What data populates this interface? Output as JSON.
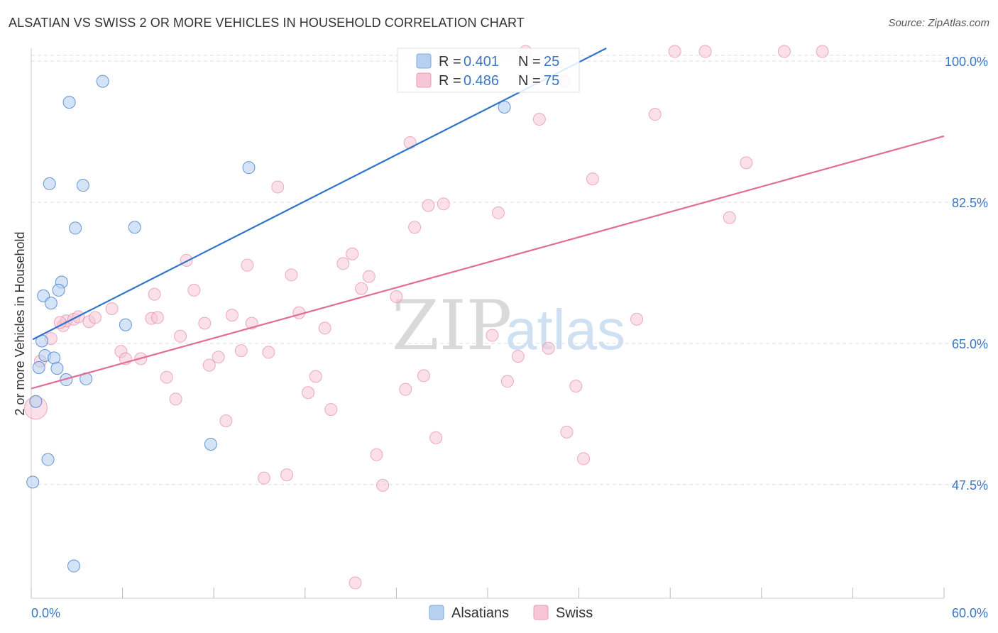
{
  "header": {
    "title": "ALSATIAN VS SWISS 2 OR MORE VEHICLES IN HOUSEHOLD CORRELATION CHART",
    "source": "Source: ZipAtlas.com"
  },
  "legend_top": {
    "rows": [
      {
        "r_label": "R = ",
        "r_value": "0.401",
        "n_label": "N = ",
        "n_value": "25"
      },
      {
        "r_label": "R = ",
        "r_value": "0.486",
        "n_label": "N = ",
        "n_value": "75"
      }
    ]
  },
  "legend_bottom": {
    "items": [
      {
        "label": "Alsatians"
      },
      {
        "label": "Swiss"
      }
    ]
  },
  "watermark": {
    "zip": "ZIP",
    "atlas": "atlas"
  },
  "colors": {
    "blue": "#3a75c4",
    "blue_fill": "#b8d0f0",
    "blue_line": "#2f74cc",
    "pink": "#e07aa0",
    "pink_fill": "#f7c6d6",
    "pink_line": "#e06e98",
    "grid": "#dddddd",
    "text_value": "#3a75c4"
  },
  "chart_data": {
    "type": "scatter",
    "title": "ALSATIAN VS SWISS 2 OR MORE VEHICLES IN HOUSEHOLD CORRELATION CHART",
    "xlabel": "",
    "ylabel": "2 or more Vehicles in Household",
    "xlim": [
      0,
      60
    ],
    "ylim": [
      33.4,
      101.6
    ],
    "x_tick_labels": [
      "0.0%",
      "60.0%"
    ],
    "y_ticks": [
      47.5,
      65.0,
      82.5,
      100.0
    ],
    "y_tick_labels": [
      "47.5%",
      "65.0%",
      "82.5%",
      "100.0%"
    ],
    "grid": true,
    "legend_placement": "top-center",
    "series": [
      {
        "name": "Alsatians",
        "r": 0.401,
        "n": 25,
        "trend": {
          "x": [
            0.1,
            37.8
          ],
          "y": [
            65.5,
            101.6
          ]
        },
        "points": [
          [
            4.7,
            97.5
          ],
          [
            2.5,
            94.9
          ],
          [
            14.3,
            86.8
          ],
          [
            1.2,
            84.8
          ],
          [
            3.4,
            84.6
          ],
          [
            2.9,
            79.3
          ],
          [
            6.8,
            79.4
          ],
          [
            2.0,
            72.6
          ],
          [
            1.8,
            71.6
          ],
          [
            0.8,
            70.9
          ],
          [
            1.3,
            70.0
          ],
          [
            6.2,
            67.3
          ],
          [
            0.7,
            65.3
          ],
          [
            0.9,
            63.5
          ],
          [
            0.5,
            62.0
          ],
          [
            1.5,
            63.2
          ],
          [
            1.7,
            61.9
          ],
          [
            2.3,
            60.5
          ],
          [
            3.6,
            60.6
          ],
          [
            0.3,
            57.8
          ],
          [
            11.8,
            52.5
          ],
          [
            1.1,
            50.6
          ],
          [
            0.1,
            47.8
          ],
          [
            2.8,
            37.4
          ],
          [
            31.1,
            94.3
          ]
        ]
      },
      {
        "name": "Swiss",
        "r": 0.486,
        "n": 75,
        "trend": {
          "x": [
            0.0,
            60.0
          ],
          "y": [
            59.4,
            90.7
          ]
        },
        "points": [
          [
            0.3,
            57.0
          ],
          [
            1.3,
            65.6
          ],
          [
            2.1,
            67.2
          ],
          [
            2.3,
            67.8
          ],
          [
            2.8,
            68.0
          ],
          [
            3.1,
            68.3
          ],
          [
            3.8,
            67.7
          ],
          [
            4.2,
            68.2
          ],
          [
            5.3,
            69.3
          ],
          [
            5.9,
            64.0
          ],
          [
            6.2,
            63.1
          ],
          [
            7.2,
            63.1
          ],
          [
            7.9,
            68.1
          ],
          [
            8.1,
            71.1
          ],
          [
            8.3,
            68.2
          ],
          [
            8.9,
            60.8
          ],
          [
            9.5,
            58.1
          ],
          [
            9.8,
            65.9
          ],
          [
            10.2,
            75.3
          ],
          [
            10.7,
            71.6
          ],
          [
            11.4,
            67.5
          ],
          [
            11.7,
            62.3
          ],
          [
            12.3,
            63.3
          ],
          [
            12.8,
            55.4
          ],
          [
            13.2,
            68.5
          ],
          [
            13.8,
            64.1
          ],
          [
            14.2,
            74.7
          ],
          [
            14.5,
            67.5
          ],
          [
            15.3,
            48.3
          ],
          [
            15.6,
            63.9
          ],
          [
            16.2,
            84.4
          ],
          [
            16.8,
            48.7
          ],
          [
            17.1,
            73.5
          ],
          [
            17.6,
            68.8
          ],
          [
            18.2,
            58.9
          ],
          [
            18.7,
            60.9
          ],
          [
            19.3,
            66.9
          ],
          [
            19.7,
            56.8
          ],
          [
            20.5,
            74.9
          ],
          [
            21.1,
            76.1
          ],
          [
            21.3,
            35.3
          ],
          [
            21.7,
            71.8
          ],
          [
            22.2,
            73.3
          ],
          [
            22.7,
            51.2
          ],
          [
            23.1,
            47.4
          ],
          [
            24.0,
            70.8
          ],
          [
            24.6,
            59.3
          ],
          [
            24.9,
            89.9
          ],
          [
            25.2,
            79.4
          ],
          [
            25.8,
            61.0
          ],
          [
            26.1,
            82.1
          ],
          [
            26.6,
            53.3
          ],
          [
            27.1,
            82.3
          ],
          [
            30.3,
            66.0
          ],
          [
            30.7,
            81.2
          ],
          [
            31.3,
            60.3
          ],
          [
            32.0,
            63.4
          ],
          [
            32.5,
            101.2
          ],
          [
            33.4,
            92.8
          ],
          [
            34.0,
            64.4
          ],
          [
            35.0,
            97.5
          ],
          [
            35.2,
            54.0
          ],
          [
            35.8,
            59.7
          ],
          [
            36.3,
            50.7
          ],
          [
            36.9,
            85.4
          ],
          [
            39.8,
            68.0
          ],
          [
            41.0,
            93.4
          ],
          [
            42.3,
            101.2
          ],
          [
            44.3,
            101.2
          ],
          [
            45.9,
            80.6
          ],
          [
            47.0,
            87.4
          ],
          [
            49.5,
            101.2
          ],
          [
            52.0,
            101.2
          ],
          [
            0.6,
            62.8
          ],
          [
            1.9,
            67.6
          ]
        ]
      }
    ]
  }
}
